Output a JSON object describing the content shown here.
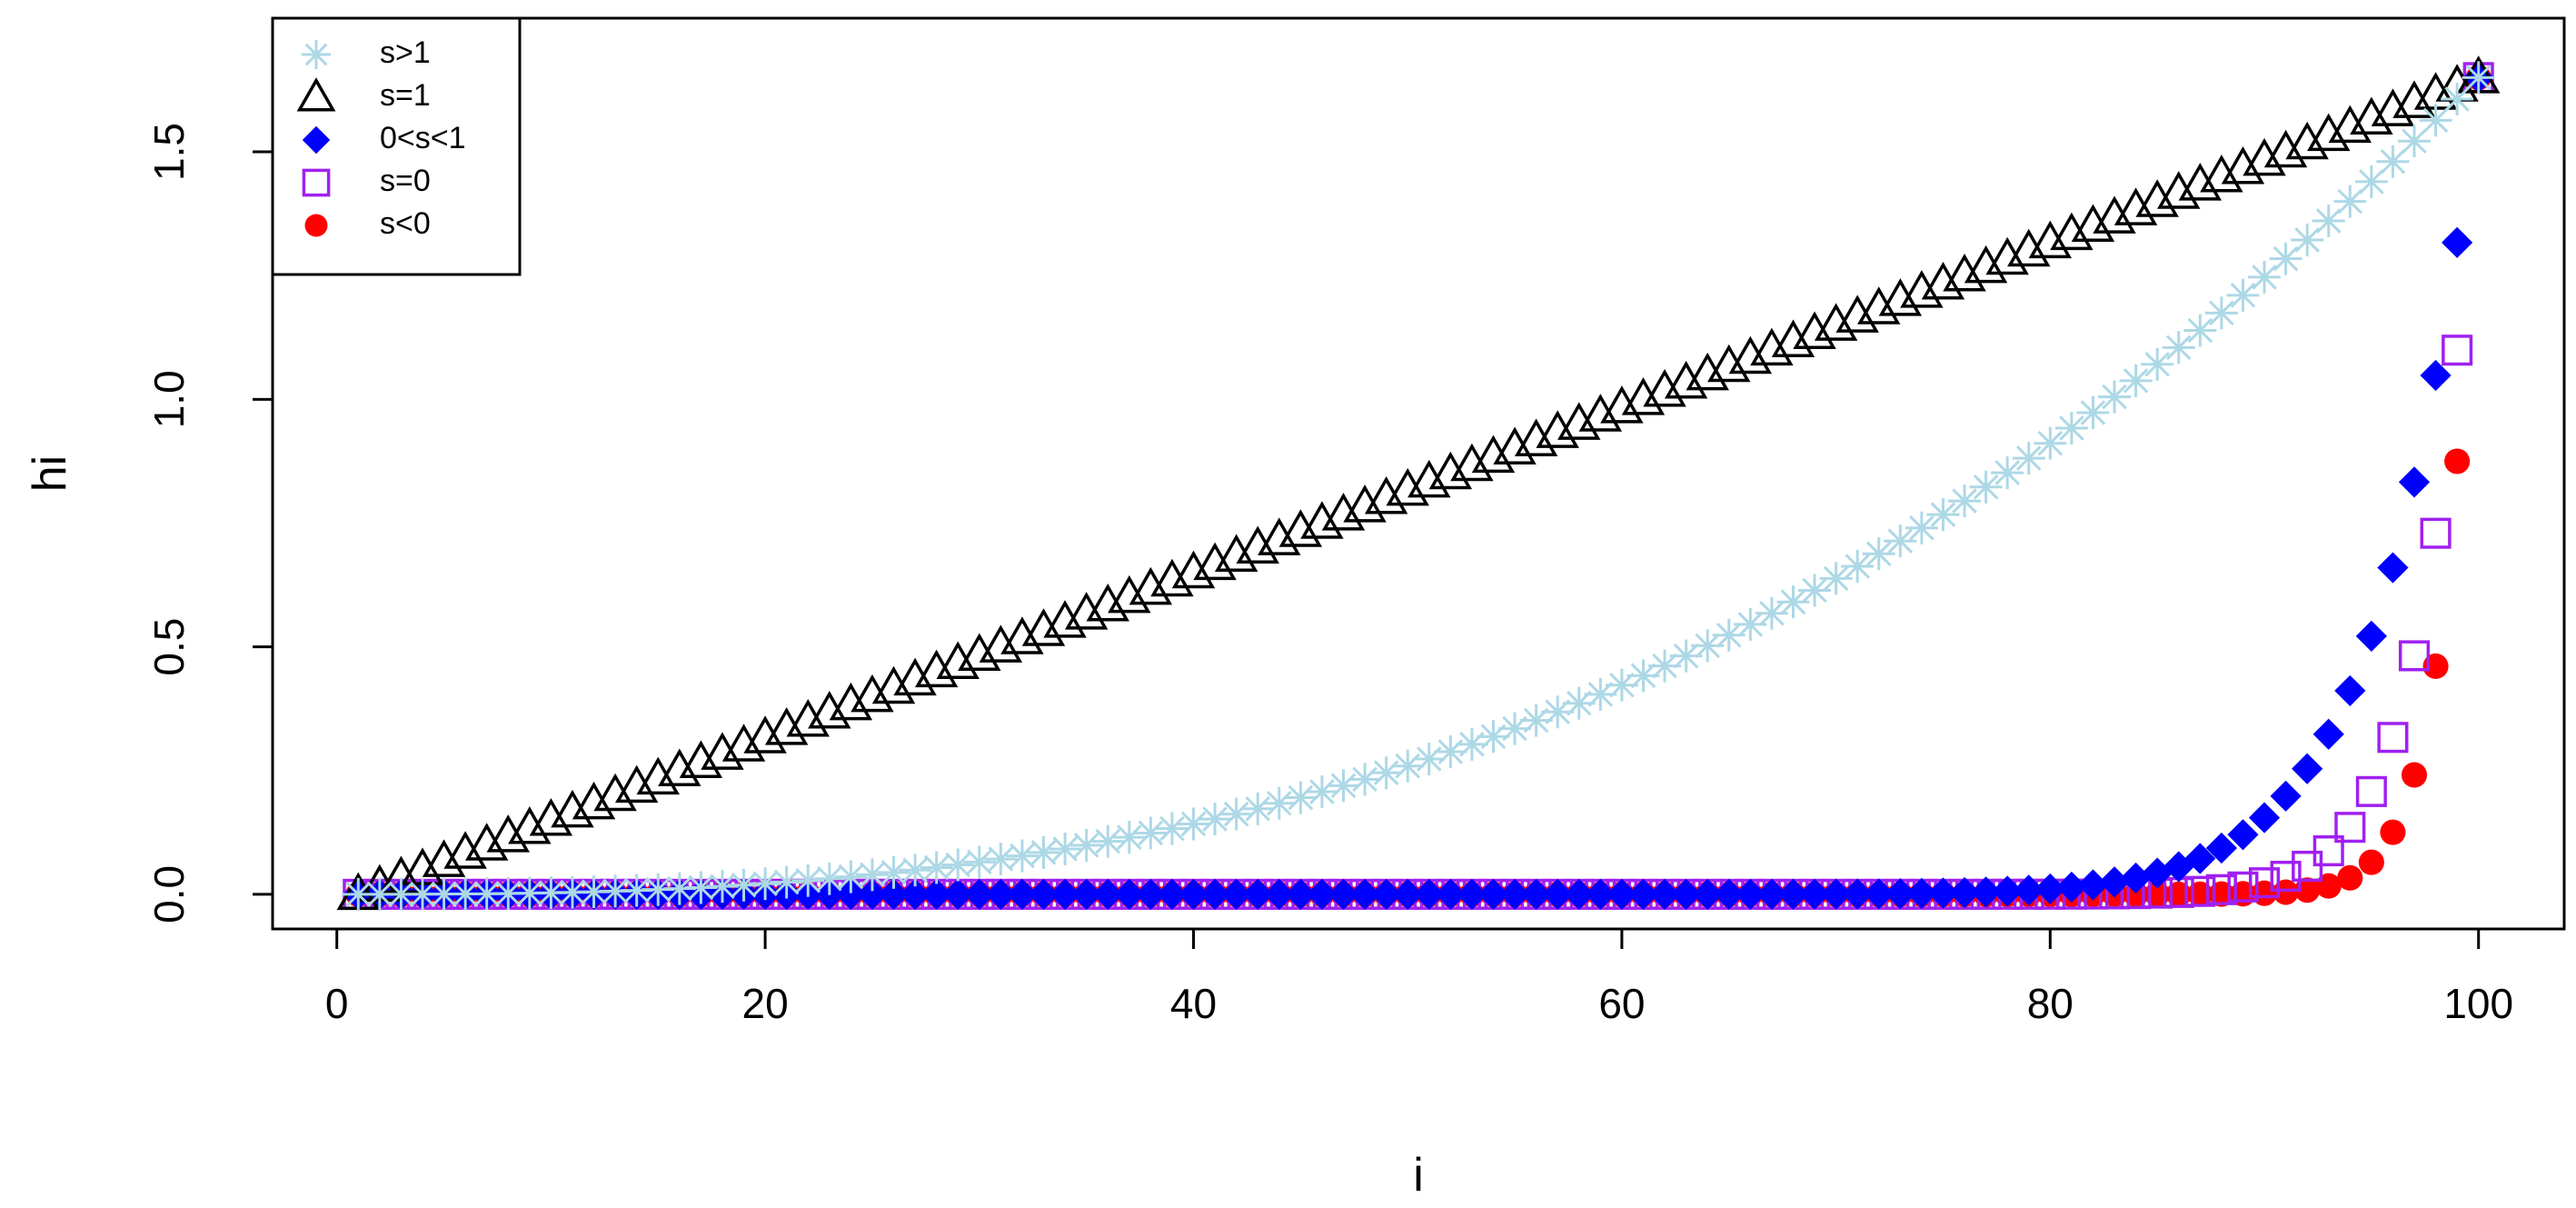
{
  "chart_data": {
    "type": "scatter",
    "title": "",
    "xlabel": "i",
    "ylabel": "hi",
    "xlim": [
      -3,
      104
    ],
    "ylim": [
      -0.07,
      1.77
    ],
    "xticks": [
      "0",
      "20",
      "40",
      "60",
      "80",
      "100"
    ],
    "yticks": [
      "0.0",
      "0.5",
      "1.0",
      "1.5"
    ],
    "grid": false,
    "legend_position": "top-left",
    "n_points": 100,
    "h_max": 1.65,
    "series": [
      {
        "name": "s>1",
        "marker": "asterisk",
        "color": "#add8e6",
        "curve_exponent": 0.38
      },
      {
        "name": "s=1",
        "marker": "triangle-open",
        "color": "#000000",
        "curve_exponent": 1
      },
      {
        "name": "0<s<1",
        "marker": "diamond-filled",
        "color": "#0000ff",
        "curve_exponent": 0.045
      },
      {
        "name": "s=0",
        "marker": "square-open",
        "color": "#a020f0",
        "curve_exponent": 0.025
      },
      {
        "name": "s<0",
        "marker": "circle-filled",
        "color": "#ff0000",
        "curve_exponent": 0.016
      }
    ]
  }
}
